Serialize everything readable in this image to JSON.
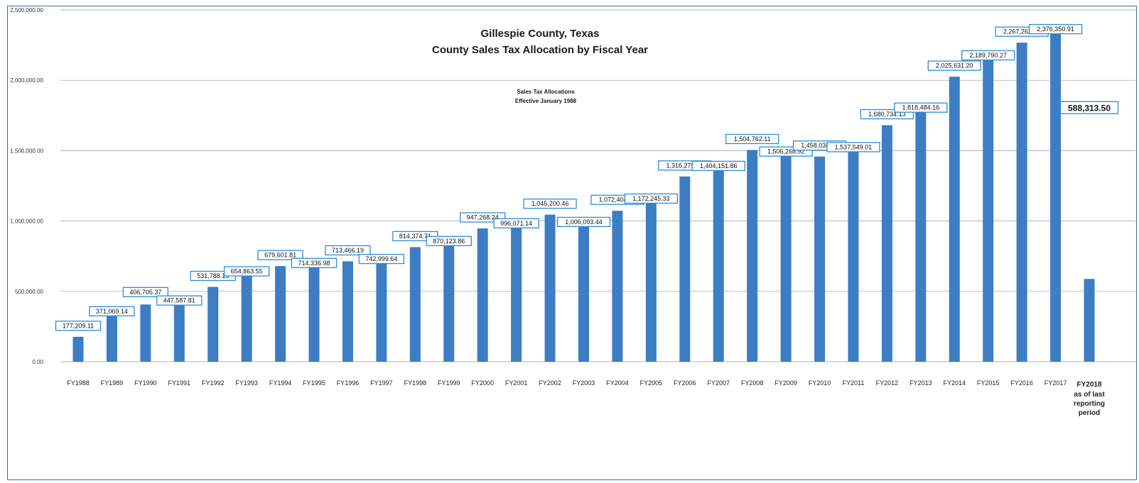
{
  "chart_data": {
    "type": "bar",
    "title": "Gillespie County, Texas",
    "subtitle": "County Sales Tax Allocation by Fiscal Year",
    "annotation": [
      "Sales Tax Allocations",
      "Effective January 1988"
    ],
    "xlabel": "",
    "ylabel": "",
    "ylim": [
      0,
      2500000
    ],
    "yticks": [
      "0.00",
      "500,000.00",
      "1,000,000.00",
      "1,500,000.00",
      "2,000,000.00",
      "2,500,000.00"
    ],
    "grid": true,
    "bar_color": "#3d7dc4",
    "label_border_color": "#2a8fd6",
    "categories": [
      "FY1988",
      "FY1989",
      "FY1990",
      "FY1991",
      "FY1992",
      "FY1993",
      "FY1994",
      "FY1995",
      "FY1996",
      "FY1997",
      "FY1998",
      "FY1999",
      "FY2000",
      "FY2001",
      "FY2002",
      "FY2003",
      "FY2004",
      "FY2005",
      "FY2006",
      "FY2007",
      "FY2008",
      "FY2009",
      "FY2010",
      "FY2011",
      "FY2012",
      "FY2013",
      "FY2014",
      "FY2015",
      "FY2016",
      "FY2017",
      "FY2018"
    ],
    "last_category_extra": [
      "as of  last",
      "reporting",
      "period"
    ],
    "values": [
      177209.11,
      371069.14,
      406705.37,
      447587.81,
      531788.15,
      654863.55,
      679601.81,
      714336.98,
      713466.19,
      742999.64,
      814374.71,
      870123.86,
      947268.24,
      996071.14,
      1045200.46,
      1006093.44,
      1072404.53,
      1172245.33,
      1316279.78,
      1404151.86,
      1504762.11,
      1506268.92,
      1458038.85,
      1537549.01,
      1680734.13,
      1818484.16,
      2025631.2,
      2189790.27,
      2267262.99,
      2376350.91,
      588313.5
    ],
    "data_labels": [
      "177,209.11",
      "371,069.14",
      "406,705.37",
      "447,587.81",
      "531,788.15",
      "654,863.55",
      "679,601.81",
      "714,336.98",
      "713,466.19",
      "742,999.64",
      "814,374.71",
      "870,123.86",
      "947,268.24",
      "996,071.14",
      "1,045,200.46",
      "1,006,093.44",
      "1,072,404.53",
      "1,172,245.33",
      "1,316,279.78",
      "1,404,151.86",
      "1,504,762.11",
      "1,506,268.92",
      "1,458,038.85",
      "1,537,549.01",
      "1,680,734.13",
      "1,818,484.16",
      "2,025,631.20",
      "2,189,790.27",
      "2,267,262.99",
      "2,376,350.91",
      "588,313.50"
    ]
  }
}
